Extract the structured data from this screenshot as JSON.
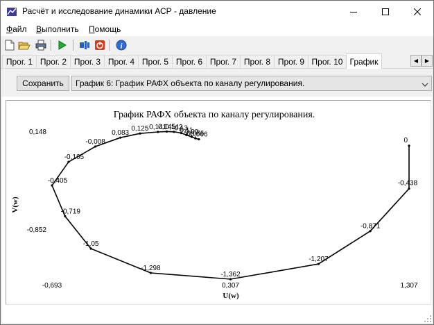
{
  "window": {
    "title": "Расчёт и исследование динамики АСР - давление"
  },
  "menu": {
    "items": [
      {
        "pre": "",
        "ul": "Ф",
        "post": "айл"
      },
      {
        "pre": "",
        "ul": "В",
        "post": "ыполнить"
      },
      {
        "pre": "",
        "ul": "П",
        "post": "омощь"
      }
    ]
  },
  "toolbar": {
    "icons": [
      "new-file-icon",
      "open-folder-icon",
      "print-icon",
      "run-icon",
      "stop-icon",
      "exit-icon",
      "info-icon"
    ]
  },
  "tabs": {
    "items": [
      "Прог. 1",
      "Прог. 2",
      "Прог. 3",
      "Прог. 4",
      "Прог. 5",
      "Прог. 6",
      "Прог. 7",
      "Прог. 8",
      "Прог. 9",
      "Прог. 10",
      "График"
    ],
    "active": "График"
  },
  "panel": {
    "save_label": "Сохранить",
    "selected_graph": "График 6: График РАФХ объекта по каналу регулирования."
  },
  "chart_data": {
    "type": "line",
    "title": "График РАФХ объекта по каналу регулирования.",
    "xlabel": "U(w)",
    "ylabel": "V(w)",
    "xlim": [
      -0.693,
      1.307
    ],
    "ylim": [
      -1.362,
      0.148
    ],
    "x_ticks": [
      "-0,693",
      "0,307",
      "1,307"
    ],
    "y_ticks": [
      "0,148",
      "-0,852"
    ],
    "points": [
      {
        "x": 1.307,
        "y": 0.0,
        "label": "0"
      },
      {
        "x": 1.307,
        "y": -0.438,
        "label": "-0,438"
      },
      {
        "x": 1.09,
        "y": -0.871,
        "label": "-0,871"
      },
      {
        "x": 0.8,
        "y": -1.207,
        "label": "-1,207"
      },
      {
        "x": 0.307,
        "y": -1.362,
        "label": "-1,362"
      },
      {
        "x": -0.14,
        "y": -1.298,
        "label": "-1,298"
      },
      {
        "x": -0.475,
        "y": -1.05,
        "label": "-1,05"
      },
      {
        "x": -0.62,
        "y": -0.719,
        "label": "-0,719"
      },
      {
        "x": -0.693,
        "y": -0.405,
        "label": "-0,405"
      },
      {
        "x": -0.6,
        "y": -0.165,
        "label": "-0,165"
      },
      {
        "x": -0.45,
        "y": -0.008,
        "label": "-0,008"
      },
      {
        "x": -0.31,
        "y": 0.083,
        "label": "0,083"
      },
      {
        "x": -0.2,
        "y": 0.125,
        "label": "0,125"
      },
      {
        "x": -0.1,
        "y": 0.141,
        "label": "0,141"
      },
      {
        "x": -0.05,
        "y": 0.145,
        "label": "0,145"
      },
      {
        "x": -0.01,
        "y": 0.142,
        "label": "0,142"
      },
      {
        "x": 0.03,
        "y": 0.13,
        "label": "0,13"
      },
      {
        "x": 0.06,
        "y": 0.11,
        "label": "0,11"
      },
      {
        "x": 0.09,
        "y": 0.09,
        "label": "0,09"
      },
      {
        "x": 0.11,
        "y": 0.076,
        "label": "0,076"
      },
      {
        "x": 0.13,
        "y": 0.066,
        "label": "0,066"
      }
    ]
  }
}
